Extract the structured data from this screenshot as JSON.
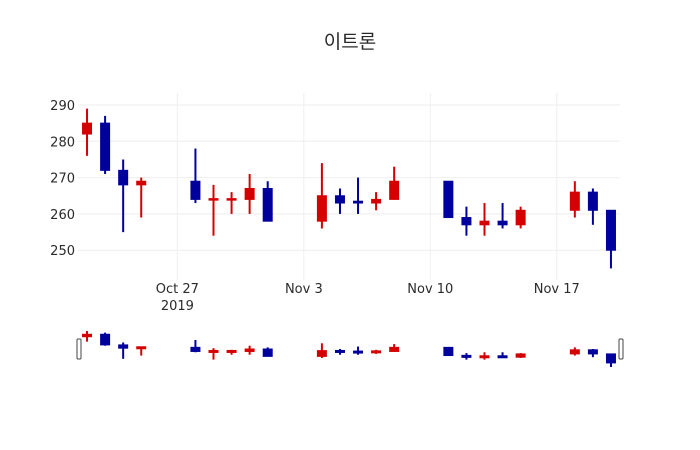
{
  "chart_data": {
    "type": "candlestick",
    "title": "이트론",
    "xlabel": "",
    "ylabel": "",
    "ylim": [
      241.8,
      293.3
    ],
    "xlim": [
      "2019-10-21 12:00",
      "2019-11-20 12:00"
    ],
    "grid": true,
    "legend": "none",
    "y_ticks": [
      250,
      260,
      270,
      280,
      290
    ],
    "x_ticks": [
      {
        "date": "2019-10-27",
        "label": "Oct 27",
        "sublabel": "2019"
      },
      {
        "date": "2019-11-03",
        "label": "Nov 3",
        "sublabel": ""
      },
      {
        "date": "2019-11-10",
        "label": "Nov 10",
        "sublabel": ""
      },
      {
        "date": "2019-11-17",
        "label": "Nov 17",
        "sublabel": ""
      }
    ],
    "increasing_color": "#d40000",
    "decreasing_color": "#00009c",
    "rangeslider": true,
    "x": [
      "2019-10-22",
      "2019-10-23",
      "2019-10-24",
      "2019-10-25",
      "2019-10-28",
      "2019-10-29",
      "2019-10-30",
      "2019-10-31",
      "2019-11-01",
      "2019-11-04",
      "2019-11-05",
      "2019-11-06",
      "2019-11-07",
      "2019-11-08",
      "2019-11-11",
      "2019-11-12",
      "2019-11-13",
      "2019-11-14",
      "2019-11-15",
      "2019-11-18",
      "2019-11-19",
      "2019-11-20"
    ],
    "open": [
      282,
      285,
      272,
      268,
      269,
      264,
      264,
      264,
      267,
      258,
      265,
      263.5,
      263,
      264,
      269,
      259,
      257,
      258,
      257,
      261,
      266,
      261
    ],
    "high": [
      289,
      287,
      275,
      270,
      278,
      268,
      266,
      271,
      269,
      274,
      267,
      270,
      266,
      273,
      269,
      262,
      263,
      263,
      262,
      269,
      267,
      261
    ],
    "low": [
      276,
      271,
      255,
      259,
      263,
      254,
      260,
      260,
      258,
      256,
      260,
      260,
      261,
      264,
      259,
      254,
      254,
      256,
      256,
      259,
      257,
      245
    ],
    "close": [
      285,
      272,
      268,
      269,
      264,
      264,
      264,
      267,
      258,
      265,
      263,
      263,
      264,
      269,
      259,
      257,
      258,
      257,
      261,
      266,
      261,
      250
    ]
  }
}
